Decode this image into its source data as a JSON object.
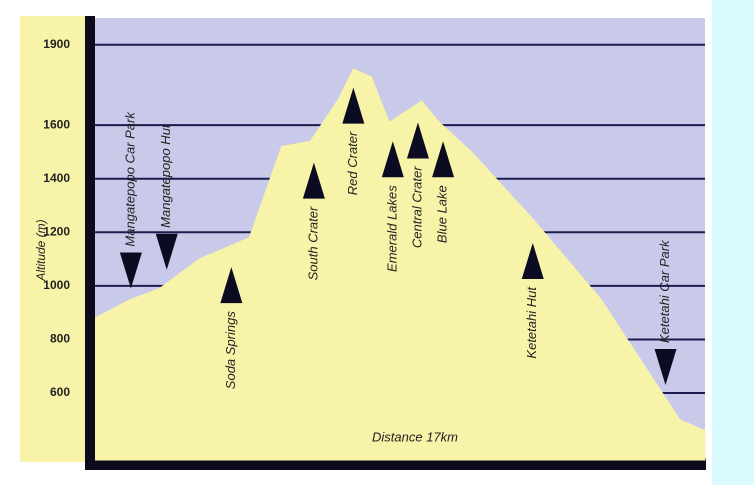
{
  "chart_data": {
    "type": "area",
    "y_label": "Altitude (m)",
    "x_label": "Distance 17km",
    "xlim": [
      0,
      17
    ],
    "ylim": [
      350,
      2000
    ],
    "yticks": [
      600,
      800,
      1000,
      1200,
      1400,
      1600,
      1900
    ],
    "grid": true,
    "color": "#f7f3a8",
    "background": "#c9c9ea",
    "grid_color": "#1c1c4e",
    "x": [
      0,
      1,
      1.8,
      2.9,
      4.3,
      5.2,
      6,
      6.8,
      7.2,
      7.7,
      8.2,
      9.1,
      9.6,
      10.5,
      12.2,
      14.1,
      15.2,
      16.3,
      17
    ],
    "values": [
      880,
      950,
      990,
      1100,
      1180,
      1520,
      1540,
      1700,
      1810,
      1780,
      1610,
      1690,
      1610,
      1500,
      1250,
      950,
      725,
      500,
      460
    ],
    "landmarks": [
      {
        "label": "Mangatepopo Car Park",
        "x": 1.0,
        "y": 990,
        "direction": "down"
      },
      {
        "label": "Mangatepopo Hut",
        "x": 2.0,
        "y": 1060,
        "direction": "down"
      },
      {
        "label": "Soda Springs",
        "x": 3.8,
        "y": 1070,
        "direction": "up"
      },
      {
        "label": "South Crater",
        "x": 6.1,
        "y": 1460,
        "direction": "up"
      },
      {
        "label": "Red Crater",
        "x": 7.2,
        "y": 1740,
        "direction": "up"
      },
      {
        "label": "Emerald Lakes",
        "x": 8.3,
        "y": 1540,
        "direction": "up"
      },
      {
        "label": "Central Crater",
        "x": 9.0,
        "y": 1610,
        "direction": "up"
      },
      {
        "label": "Blue Lake",
        "x": 9.7,
        "y": 1540,
        "direction": "up"
      },
      {
        "label": "Ketetahi Hut",
        "x": 12.2,
        "y": 1160,
        "direction": "up"
      },
      {
        "label": "Ketetahi Car Park",
        "x": 15.9,
        "y": 630,
        "direction": "down"
      }
    ]
  }
}
